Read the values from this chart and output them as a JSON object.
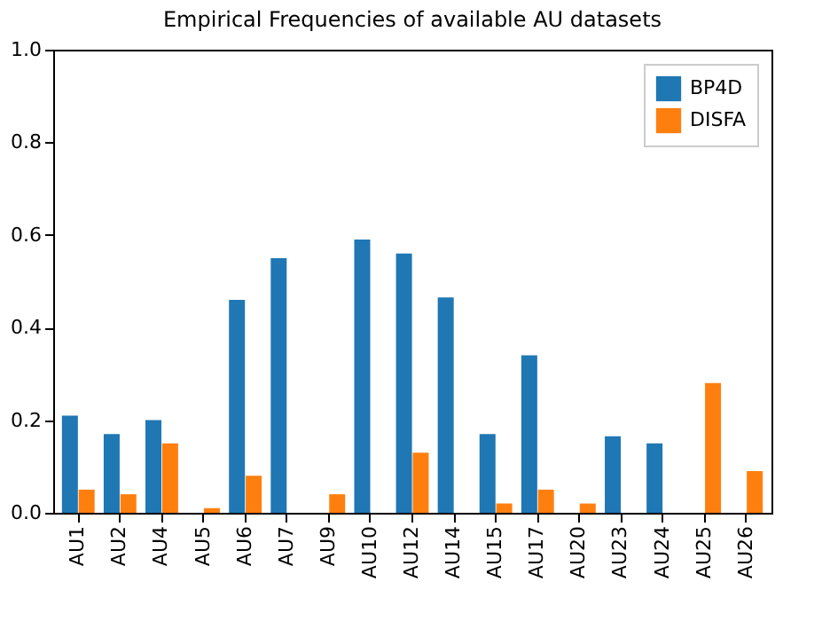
{
  "chart_data": {
    "type": "bar",
    "title": "Empirical Frequencies of available AU datasets",
    "categories": [
      "AU1",
      "AU2",
      "AU4",
      "AU5",
      "AU6",
      "AU7",
      "AU9",
      "AU10",
      "AU12",
      "AU14",
      "AU15",
      "AU17",
      "AU20",
      "AU23",
      "AU24",
      "AU25",
      "AU26"
    ],
    "series": [
      {
        "name": "BP4D",
        "color": "#1f77b4",
        "values": [
          0.21,
          0.17,
          0.2,
          null,
          0.46,
          0.55,
          null,
          0.59,
          0.56,
          0.465,
          0.17,
          0.34,
          null,
          0.165,
          0.15,
          null,
          null
        ]
      },
      {
        "name": "DISFA",
        "color": "#ff7f0e",
        "values": [
          0.05,
          0.04,
          0.15,
          0.01,
          0.08,
          null,
          0.04,
          null,
          0.13,
          null,
          0.02,
          0.05,
          0.02,
          null,
          null,
          0.28,
          0.09
        ]
      }
    ],
    "ylim": [
      0,
      1
    ],
    "yticks": [
      {
        "value": 0,
        "label": "0.0"
      },
      {
        "value": 0.2,
        "label": "0.2"
      },
      {
        "value": 0.4,
        "label": "0.4"
      },
      {
        "value": 0.6,
        "label": "0.6"
      },
      {
        "value": 0.8,
        "label": "0.8"
      },
      {
        "value": 1,
        "label": "1.0"
      }
    ],
    "grid": false,
    "legend": "top right"
  }
}
